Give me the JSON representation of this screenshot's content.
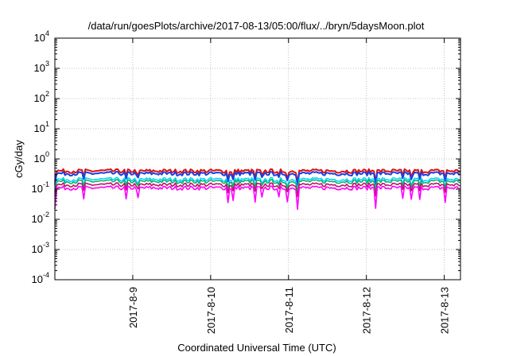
{
  "chart_data": {
    "type": "line",
    "title": "/data/run/goesPlots/archive/2017-08-13/05:00/flux/../bryn/5daysMoon.plot",
    "xlabel": "Coordinated Universal Time (UTC)",
    "ylabel": "cGy/day",
    "y_scale": "log",
    "ylim": [
      0.0001,
      10000
    ],
    "y_ticks": [
      {
        "base": "10",
        "exp": "-4"
      },
      {
        "base": "10",
        "exp": "-3"
      },
      {
        "base": "10",
        "exp": "-2"
      },
      {
        "base": "10",
        "exp": "-1"
      },
      {
        "base": "10",
        "exp": "0"
      },
      {
        "base": "10",
        "exp": "1"
      },
      {
        "base": "10",
        "exp": "2"
      },
      {
        "base": "10",
        "exp": "3"
      },
      {
        "base": "10",
        "exp": "4"
      }
    ],
    "xlim": [
      "2017-08-08 00:00",
      "2017-08-13 05:00"
    ],
    "x_ticks": [
      "2017-8-9",
      "2017-8-10",
      "2017-8-11",
      "2017-8-12",
      "2017-8-13"
    ],
    "grid": true,
    "legend": "none",
    "series": [
      {
        "color": "#e01010",
        "level": 0.4
      },
      {
        "color": "#1a3fe0",
        "level": 0.33
      },
      {
        "color": "#00d8ff",
        "level": 0.21
      },
      {
        "color": "#10b070",
        "level": 0.18
      },
      {
        "color": "#c0106a",
        "level": 0.14
      },
      {
        "color": "#ff00ff",
        "level": 0.11
      }
    ]
  }
}
